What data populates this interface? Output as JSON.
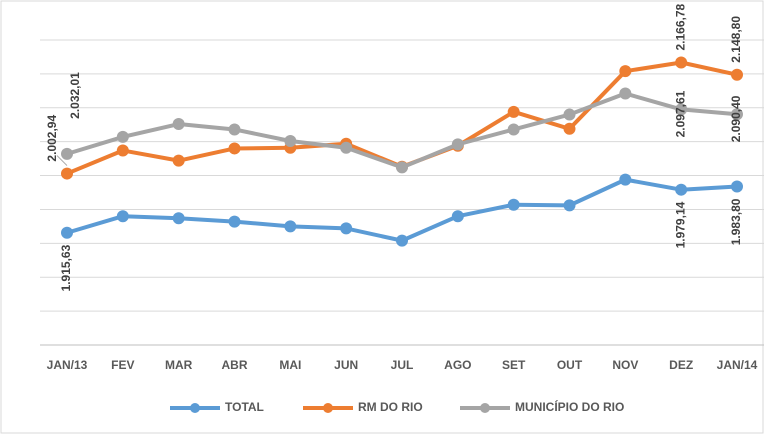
{
  "chart_data": {
    "type": "line",
    "categories": [
      "JAN/13",
      "FEV",
      "MAR",
      "ABR",
      "MAI",
      "JUN",
      "JUL",
      "AGO",
      "SET",
      "OUT",
      "NOV",
      "DEZ",
      "JAN/14"
    ],
    "ylim": [
      1750,
      2200
    ],
    "grid": true,
    "legend": "bottom",
    "series": [
      {
        "name": "TOTAL",
        "color": "#5b9bd5",
        "values": [
          1915.63,
          1940,
          1937,
          1932,
          1925,
          1922,
          1904,
          1940,
          1957,
          1956,
          1994,
          1979.14,
          1983.8
        ],
        "value_labels": [
          "1.915,63",
          null,
          null,
          null,
          null,
          null,
          null,
          null,
          null,
          null,
          null,
          "1.979,14",
          "1.983,80"
        ]
      },
      {
        "name": "RM DO RIO",
        "color": "#ed7d31",
        "values": [
          2002.94,
          2037,
          2022,
          2040,
          2041,
          2047,
          2013,
          2044,
          2094,
          2069,
          2154,
          2166.78,
          2148.8
        ],
        "value_labels": [
          "2.002,94",
          null,
          null,
          null,
          null,
          null,
          null,
          null,
          null,
          null,
          null,
          "2.166,78",
          "2.148,80"
        ]
      },
      {
        "name": "MUNICÍPIO DO RIO",
        "color": "#a5a5a5",
        "values": [
          2032.01,
          2057,
          2076,
          2068,
          2051,
          2041,
          2012,
          2046,
          2068,
          2090,
          2121,
          2097.61,
          2090.4
        ],
        "value_labels": [
          "2.032,01",
          null,
          null,
          null,
          null,
          null,
          null,
          null,
          null,
          null,
          null,
          "2.097,61",
          "2.090,40"
        ]
      }
    ]
  }
}
